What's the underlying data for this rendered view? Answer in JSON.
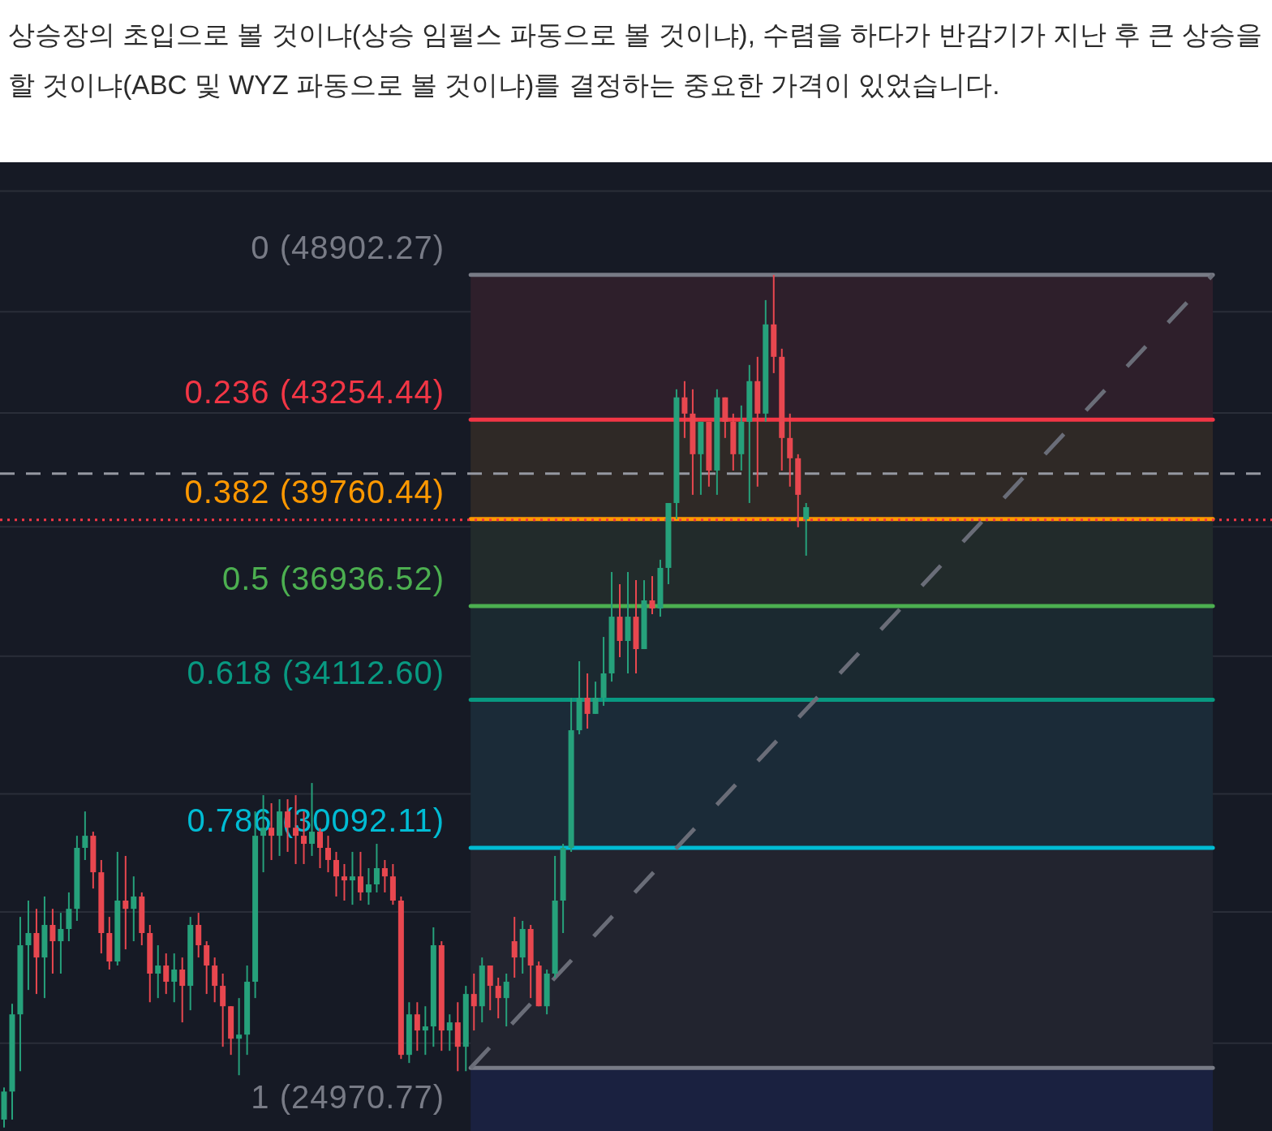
{
  "chart_data": {
    "type": "candlestick",
    "title": "상승장의 초입으로 볼 것이냐(상승 임펄스 파동으로 볼 것이냐), 수렴을 하다가 반감기가 지난 후 큰 상승을 할 것이냐(ABC 및 WYZ 파동으로 볼 것이냐)를 결정하는 중요한 가격이 있었습니다.",
    "log": "y",
    "ylim": [
      23670,
      53800
    ],
    "yticks": [
      {
        "value": 52500,
        "label": null
      },
      {
        "value": 47400,
        "label": null
      },
      {
        "value": 43500,
        "label": null
      },
      {
        "value": 39500,
        "label": null
      },
      {
        "value": 35400,
        "label": null
      },
      {
        "value": 31500,
        "label": null
      },
      {
        "value": 28500,
        "label": null
      },
      {
        "value": 25500,
        "label": null
      }
    ],
    "grid": "y",
    "categories": [
      null,
      null,
      null,
      null,
      null,
      null,
      null,
      null,
      null,
      null,
      null,
      null,
      null,
      null,
      null,
      null,
      null,
      null,
      null,
      null,
      null,
      null,
      null,
      null,
      null,
      null,
      null,
      null,
      null,
      null,
      null,
      null,
      null,
      null,
      null,
      null,
      null,
      null,
      null,
      null,
      null,
      null,
      null,
      null,
      null,
      null,
      null,
      null,
      null,
      null,
      null,
      null,
      null,
      null,
      null,
      null,
      null,
      null,
      null,
      null,
      null,
      null,
      null,
      null,
      null,
      null,
      null,
      null,
      null,
      null,
      null,
      null,
      null,
      null,
      null,
      null,
      null,
      null,
      null,
      null,
      null,
      null,
      null,
      null,
      null,
      null,
      null,
      null,
      null,
      null,
      null,
      null,
      null,
      null,
      null,
      null,
      null,
      null,
      null,
      null,
      null,
      null,
      null,
      null,
      null,
      null,
      null,
      null,
      null,
      null,
      null,
      null,
      null,
      null,
      null,
      null,
      null,
      null,
      null,
      null,
      null,
      null,
      null,
      null,
      null,
      null,
      null,
      null,
      null,
      null,
      null,
      null,
      null,
      null,
      null,
      null,
      null,
      null,
      null,
      null,
      null,
      null,
      null,
      null,
      null,
      null,
      null,
      null,
      null,
      null,
      null,
      null,
      null,
      null,
      null,
      null,
      null
    ],
    "ohlc": [
      [
        23900,
        24560,
        23740,
        24475
      ],
      [
        24475,
        26365,
        23900,
        26130
      ],
      [
        26130,
        28380,
        24901,
        27706
      ],
      [
        27706,
        28775,
        26676,
        27994
      ],
      [
        27994,
        28574,
        26585,
        27420
      ],
      [
        27420,
        28875,
        26493,
        28187
      ],
      [
        28187,
        28574,
        27048,
        27801
      ],
      [
        27801,
        28478,
        27048,
        28090
      ],
      [
        28090,
        28975,
        27801,
        28574
      ],
      [
        28574,
        30400,
        28284,
        30090
      ],
      [
        30090,
        31033,
        29782,
        30400
      ],
      [
        30400,
        30505,
        29070,
        29474
      ],
      [
        29474,
        29782,
        27515,
        27994
      ],
      [
        27994,
        28380,
        27141,
        27327
      ],
      [
        27327,
        29988,
        27234,
        28775
      ],
      [
        28775,
        29885,
        27610,
        28574
      ],
      [
        28574,
        29371,
        27801,
        28875
      ],
      [
        28875,
        28975,
        27706,
        27994
      ],
      [
        27994,
        28187,
        26400,
        27048
      ],
      [
        27048,
        27706,
        26493,
        27234
      ],
      [
        27234,
        27515,
        26585,
        26862
      ],
      [
        26862,
        27515,
        26400,
        27141
      ],
      [
        27141,
        27420,
        25953,
        26769
      ],
      [
        26769,
        28380,
        26221,
        28187
      ],
      [
        28187,
        28478,
        27420,
        27706
      ],
      [
        27706,
        27800,
        26585,
        27234
      ],
      [
        27234,
        27420,
        26400,
        26769
      ],
      [
        26769,
        27048,
        25422,
        26310
      ],
      [
        26310,
        26310,
        25248,
        25596
      ],
      [
        25596,
        26493,
        24816,
        25685
      ],
      [
        25685,
        27234,
        25248,
        26862
      ],
      [
        26862,
        31033,
        26493,
        30400
      ],
      [
        30400,
        31464,
        29474,
        30608
      ],
      [
        30608,
        31250,
        29782,
        30400
      ],
      [
        30400,
        31356,
        29885,
        31033
      ],
      [
        31033,
        31356,
        29988,
        30608
      ],
      [
        30608,
        31464,
        29680,
        30400
      ],
      [
        30400,
        31033,
        29680,
        30193
      ],
      [
        30193,
        31790,
        29885,
        30505
      ],
      [
        30505,
        30600,
        29577,
        30090
      ],
      [
        30090,
        30400,
        29474,
        29782
      ],
      [
        29782,
        29988,
        28875,
        29371
      ],
      [
        29371,
        29680,
        28775,
        29272
      ],
      [
        29272,
        29988,
        28674,
        29371
      ],
      [
        29371,
        29988,
        28775,
        28975
      ],
      [
        28975,
        29577,
        28674,
        29173
      ],
      [
        29173,
        30193,
        28975,
        29577
      ],
      [
        29577,
        29782,
        28975,
        29371
      ],
      [
        29371,
        29680,
        28674,
        28775
      ],
      [
        28775,
        28875,
        25160,
        25248
      ],
      [
        25248,
        26400,
        25075,
        26130
      ],
      [
        26130,
        26400,
        25335,
        25775
      ],
      [
        25775,
        26310,
        25248,
        25864
      ],
      [
        25864,
        28130,
        25422,
        27706
      ],
      [
        27706,
        27801,
        25335,
        25775
      ],
      [
        25775,
        26130,
        25335,
        25953
      ],
      [
        25953,
        26400,
        24901,
        25422
      ],
      [
        25422,
        26769,
        24901,
        26585
      ],
      [
        26585,
        27048,
        25775,
        26310
      ],
      [
        26310,
        27420,
        25953,
        27234
      ],
      [
        27234,
        27234,
        26221,
        26769
      ],
      [
        26769,
        26955,
        26042,
        26493
      ],
      [
        26493,
        27048,
        25864,
        26862
      ],
      [
        27801,
        28380,
        26955,
        27420
      ],
      [
        27420,
        28284,
        27048,
        28090
      ],
      [
        28090,
        28187,
        26493,
        27234
      ],
      [
        27234,
        27327,
        26310,
        26310
      ],
      [
        26310,
        27141,
        26130,
        27048
      ],
      [
        27048,
        29885,
        26955,
        28775
      ],
      [
        28775,
        30193,
        27994,
        30090
      ],
      [
        30090,
        34173,
        29988,
        33244
      ],
      [
        33244,
        35247,
        33130,
        34173
      ],
      [
        34173,
        34885,
        33290,
        33708
      ],
      [
        33708,
        34643,
        33708,
        34173
      ],
      [
        34173,
        35980,
        33940,
        34885
      ],
      [
        34885,
        38015,
        34643,
        36603
      ],
      [
        36603,
        37625,
        35368,
        35858
      ],
      [
        35858,
        38015,
        34885,
        36603
      ],
      [
        36603,
        37753,
        34885,
        35611
      ],
      [
        35611,
        37753,
        35611,
        37112
      ],
      [
        37112,
        37884,
        36680,
        36857
      ],
      [
        36857,
        38413,
        36603,
        38148
      ],
      [
        38148,
        40305,
        37625,
        40305
      ],
      [
        40305,
        44383,
        39758,
        44080
      ],
      [
        44080,
        44690,
        42589,
        43477
      ],
      [
        43477,
        44383,
        40586,
        42007
      ],
      [
        42007,
        43177,
        40586,
        43177
      ],
      [
        43177,
        43177,
        40868,
        41430
      ],
      [
        41430,
        44383,
        40586,
        44080
      ],
      [
        44080,
        44080,
        42589,
        43177
      ],
      [
        43177,
        43477,
        41430,
        42007
      ],
      [
        42007,
        43777,
        41430,
        43177
      ],
      [
        43177,
        45308,
        40305,
        44690
      ],
      [
        44690,
        45621,
        40868,
        43477
      ],
      [
        43477,
        47868,
        43177,
        46892
      ],
      [
        46892,
        48902.27,
        44996,
        45621
      ],
      [
        45621,
        45936,
        41430,
        42589
      ],
      [
        42589,
        43477,
        40868,
        41863
      ],
      [
        41863,
        42007,
        39486,
        40586
      ],
      [
        39758,
        40305,
        38545,
        40164
      ],
      null,
      null,
      null,
      null,
      null,
      null,
      null,
      null,
      null,
      null,
      null,
      null,
      null,
      null,
      null,
      null,
      null,
      null,
      null,
      null,
      null,
      null,
      null,
      null,
      null,
      null,
      null,
      null,
      null,
      null,
      null,
      null,
      null,
      null,
      null,
      null,
      null,
      null,
      null,
      null,
      null,
      null,
      null,
      null,
      null,
      null,
      null,
      null,
      null,
      null,
      null,
      null,
      null,
      null,
      null,
      null,
      null
    ],
    "bands": [
      {
        "axis": "y",
        "from": 48902.27,
        "to": 43254.44,
        "color": "#2e1f2b"
      },
      {
        "axis": "y",
        "from": 43254.44,
        "to": 39760.44,
        "color": "#2f2926"
      },
      {
        "axis": "y",
        "from": 39760.44,
        "to": 36936.52,
        "color": "#222b2b"
      },
      {
        "axis": "y",
        "from": 36936.52,
        "to": 34112.6,
        "color": "#1b2930"
      },
      {
        "axis": "y",
        "from": 34112.6,
        "to": 30092.11,
        "color": "#1b2b38"
      },
      {
        "axis": "y",
        "from": 30092.11,
        "to": 24970.77,
        "color": "#22242f"
      },
      {
        "axis": "y",
        "from": 24970.77,
        "to": 23670,
        "color": "#1a2140"
      }
    ],
    "ref_lines": [
      {
        "axis": "y",
        "value": 48902.27,
        "label": "0 (48902.27)",
        "color": "#787b86"
      },
      {
        "axis": "y",
        "value": 43254.44,
        "label": "0.236 (43254.44)",
        "color": "#f23645"
      },
      {
        "axis": "y",
        "value": 39760.44,
        "label": "0.382 (39760.44)",
        "color": "#ff9800"
      },
      {
        "axis": "y",
        "value": 36936.52,
        "label": "0.5 (36936.52)",
        "color": "#4caf50"
      },
      {
        "axis": "y",
        "value": 34112.6,
        "label": "0.618 (34112.60)",
        "color": "#089981"
      },
      {
        "axis": "y",
        "value": 30092.11,
        "label": "0.786 (30092.11)",
        "color": "#00bcd4"
      },
      {
        "axis": "y",
        "value": 24970.77,
        "label": "1 (24970.77)",
        "color": "#787b86"
      },
      {
        "axis": "y",
        "value": 41320,
        "color": "#9598a1",
        "line_style": "dashed"
      },
      {
        "axis": "y",
        "value": 39730,
        "color": "#f23645",
        "line_style": "dotted"
      }
    ]
  }
}
